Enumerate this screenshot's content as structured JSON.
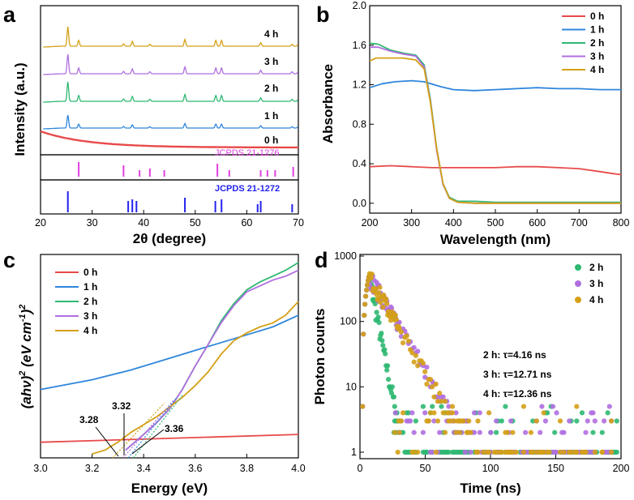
{
  "chart_data": [
    {
      "panel": "a",
      "type": "line",
      "title": "",
      "xlabel": "2θ (degree)",
      "ylabel": "Intensity (a.u.)",
      "xlim": [
        20,
        70
      ],
      "xticks": [
        "20",
        "30",
        "40",
        "50",
        "60",
        "70"
      ],
      "series": [
        {
          "name": "4 h",
          "color": "#d4a017"
        },
        {
          "name": "3 h",
          "color": "#b06fe0"
        },
        {
          "name": "2 h",
          "color": "#2fb872"
        },
        {
          "name": "1 h",
          "color": "#2f86dc"
        },
        {
          "name": "0 h",
          "color": "#e84a4a"
        }
      ],
      "references": [
        {
          "name": "JCPDS 21-1276",
          "color": "#e040e0",
          "positions": [
            27.4,
            36.1,
            39.2,
            41.2,
            44.0,
            54.3,
            56.6,
            62.7,
            64.0,
            65.5,
            69.0
          ]
        },
        {
          "name": "JCPDS 21-1272",
          "color": "#2222ee",
          "positions": [
            25.3,
            37.0,
            37.8,
            38.6,
            48.0,
            53.9,
            55.1,
            62.1,
            62.7,
            68.8
          ]
        }
      ]
    },
    {
      "panel": "b",
      "type": "line",
      "xlabel": "Wavelength (nm)",
      "ylabel": "Absorbance",
      "xlim": [
        200,
        800
      ],
      "ylim": [
        -0.1,
        2.0
      ],
      "xticks": [
        "200",
        "300",
        "400",
        "500",
        "600",
        "700",
        "800"
      ],
      "yticks": [
        "0.0",
        "0.4",
        "0.8",
        "1.2",
        "1.6",
        "2.0"
      ],
      "series": [
        {
          "name": "0 h",
          "color": "#e84a4a",
          "x": [
            200,
            250,
            300,
            350,
            400,
            450,
            500,
            550,
            600,
            650,
            700,
            750,
            780,
            800
          ],
          "y": [
            0.37,
            0.38,
            0.37,
            0.36,
            0.36,
            0.36,
            0.36,
            0.37,
            0.37,
            0.36,
            0.35,
            0.32,
            0.3,
            0.29
          ]
        },
        {
          "name": "1 h",
          "color": "#2f86dc",
          "x": [
            200,
            230,
            260,
            300,
            330,
            370,
            400,
            450,
            500,
            550,
            600,
            650,
            700,
            750,
            800
          ],
          "y": [
            1.17,
            1.21,
            1.23,
            1.24,
            1.23,
            1.18,
            1.15,
            1.14,
            1.15,
            1.16,
            1.17,
            1.16,
            1.16,
            1.15,
            1.15
          ]
        },
        {
          "name": "2 h",
          "color": "#2fb872",
          "x": [
            200,
            220,
            250,
            280,
            310,
            330,
            345,
            360,
            375,
            390,
            410,
            450,
            500,
            600,
            700,
            800
          ],
          "y": [
            1.62,
            1.61,
            1.55,
            1.52,
            1.5,
            1.4,
            1.05,
            0.55,
            0.2,
            0.06,
            0.02,
            0.02,
            0.01,
            0.01,
            0.01,
            0.01
          ]
        },
        {
          "name": "3 h",
          "color": "#b06fe0",
          "x": [
            200,
            220,
            250,
            280,
            310,
            330,
            345,
            360,
            375,
            390,
            410,
            450,
            500,
            600,
            700,
            800
          ],
          "y": [
            1.58,
            1.58,
            1.54,
            1.51,
            1.49,
            1.38,
            1.03,
            0.53,
            0.19,
            0.05,
            0.01,
            0.0,
            0.0,
            0.0,
            0.0,
            0.0
          ]
        },
        {
          "name": "4 h",
          "color": "#d4a017",
          "x": [
            200,
            215,
            250,
            280,
            310,
            330,
            345,
            360,
            375,
            390,
            410,
            450,
            500,
            600,
            700,
            800
          ],
          "y": [
            1.44,
            1.47,
            1.47,
            1.47,
            1.45,
            1.36,
            1.02,
            0.55,
            0.2,
            0.05,
            0.01,
            0.0,
            0.0,
            0.0,
            0.0,
            0.0
          ]
        }
      ]
    },
    {
      "panel": "c",
      "type": "line",
      "xlabel": "Energy (eV)",
      "ylabel": "(ahν)² (eV cm⁻¹)²",
      "xlim": [
        3.0,
        4.0
      ],
      "ylim": [
        0,
        100
      ],
      "xticks": [
        "3.0",
        "3.2",
        "3.4",
        "3.6",
        "3.8",
        "4.0"
      ],
      "annotations": [
        "3.28",
        "3.32",
        "3.36"
      ],
      "series": [
        {
          "name": "0 h",
          "color": "#e84a4a",
          "x": [
            3.0,
            4.0
          ],
          "y": [
            8,
            12
          ]
        },
        {
          "name": "1 h",
          "color": "#2f86dc",
          "x": [
            3.0,
            3.2,
            3.35,
            3.5,
            3.6,
            3.7,
            3.8,
            3.9,
            4.0
          ],
          "y": [
            35,
            40,
            45,
            51,
            55,
            59,
            63,
            67,
            73
          ]
        },
        {
          "name": "2 h",
          "color": "#2fb872",
          "x": [
            3.33,
            3.4,
            3.45,
            3.5,
            3.55,
            3.6,
            3.65,
            3.7,
            3.75,
            3.8,
            3.85,
            3.9,
            3.95,
            4.0
          ],
          "y": [
            4,
            12,
            18,
            25,
            35,
            47,
            58,
            70,
            79,
            86,
            90,
            93,
            96,
            100
          ]
        },
        {
          "name": "3 h",
          "color": "#b06fe0",
          "x": [
            3.33,
            3.4,
            3.45,
            3.5,
            3.55,
            3.6,
            3.65,
            3.7,
            3.75,
            3.8,
            3.85,
            3.9,
            3.95,
            4.0
          ],
          "y": [
            4,
            12,
            18,
            25,
            35,
            47,
            58,
            69,
            78,
            85,
            88,
            91,
            93,
            96
          ]
        },
        {
          "name": "4 h",
          "color": "#d4a017",
          "x": [
            3.2,
            3.25,
            3.3,
            3.35,
            3.4,
            3.45,
            3.5,
            3.55,
            3.6,
            3.65,
            3.7,
            3.75,
            3.8,
            3.85,
            3.9,
            3.95,
            4.0
          ],
          "y": [
            2,
            4,
            8,
            13,
            17,
            21,
            26,
            31,
            37,
            44,
            53,
            60,
            64,
            67,
            69,
            73,
            80
          ]
        }
      ]
    },
    {
      "panel": "d",
      "type": "scatter",
      "xlabel": "Time (ns)",
      "ylabel": "Photon counts",
      "xlim": [
        0,
        200
      ],
      "ylim": [
        1,
        1000
      ],
      "yscale": "log",
      "xticks": [
        "0",
        "50",
        "100",
        "150",
        "200"
      ],
      "yticks": [
        "1",
        "10",
        "100",
        "1000"
      ],
      "series": [
        {
          "name": "2 h",
          "color": "#2fb872",
          "lifetime": "2 h: τ=4.16 ns"
        },
        {
          "name": "3 h",
          "color": "#b06fe0",
          "lifetime": "3 h: τ=12.71 ns"
        },
        {
          "name": "4 h",
          "color": "#d4a017",
          "lifetime": "4 h: τ=12.36 ns"
        }
      ]
    }
  ],
  "panel_labels": {
    "a": "a",
    "b": "b",
    "c": "c",
    "d": "d"
  },
  "a_labels": {
    "h4": "4 h",
    "h3": "3 h",
    "h2": "2 h",
    "h1": "1 h",
    "h0": "0 h",
    "ref1": "JCPDS 21-1276",
    "ref2": "JCPDS 21-1272"
  },
  "b_legend": [
    "0 h",
    "1 h",
    "2 h",
    "3 h",
    "4 h"
  ],
  "c_legend": [
    "0 h",
    "1 h",
    "2 h",
    "3 h",
    "4 h"
  ],
  "c_ann": {
    "v1": "3.28",
    "v2": "3.32",
    "v3": "3.36"
  },
  "d_legend": [
    "2 h",
    "3 h",
    "4 h"
  ],
  "d_tau": {
    "t2": "2 h: τ=4.16 ns",
    "t3": "3 h: τ=12.71 ns",
    "t4": "4 h: τ=12.36 ns"
  },
  "c_ylabel": {
    "open": "(",
    "a": "a",
    "h": "h",
    "nu": "ν",
    "close": ")",
    "sq": "2",
    "unitopen": " (",
    "ev": "eV cm",
    "neg1": "-1",
    "unitclose": ")",
    "sq2": "2"
  }
}
